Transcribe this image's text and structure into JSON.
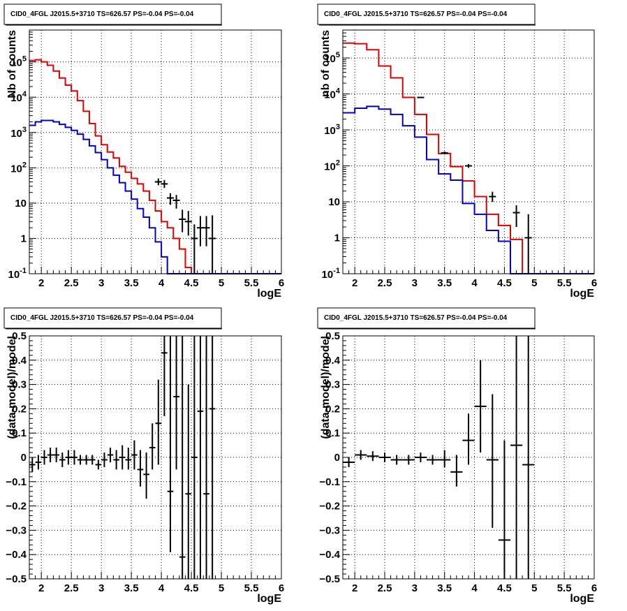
{
  "chart_data": [
    {
      "type": "line",
      "title": "CID0_4FGL J2015.5+3710 TS=626.57 PS=-0.04 PS=-0.04",
      "xlabel": "logE",
      "ylabel": "Nb of counts",
      "xlim": [
        1.8,
        6.0
      ],
      "ylim": [
        0.1,
        800000
      ],
      "yscale": "log",
      "grid": true,
      "x_ticks": [
        2,
        2.5,
        3,
        3.5,
        4,
        4.5,
        5,
        5.5,
        6
      ],
      "x_tick_labels": [
        "2",
        "2.5",
        "3",
        "3.5",
        "4",
        "4.5",
        "5",
        "5.5",
        "6"
      ],
      "y_ticks": [
        0.1,
        1,
        10,
        100,
        1000,
        10000,
        100000
      ],
      "y_tick_labels": [
        "10^-1",
        "1",
        "10",
        "10^2",
        "10^3",
        "10^4",
        "10^5"
      ],
      "bin_edges": [
        1.8,
        1.9,
        2.0,
        2.1,
        2.2,
        2.3,
        2.4,
        2.5,
        2.6,
        2.7,
        2.8,
        2.9,
        3.0,
        3.1,
        3.2,
        3.3,
        3.4,
        3.5,
        3.6,
        3.7,
        3.8,
        3.9,
        4.0,
        4.1,
        4.2,
        4.3,
        4.4,
        4.5,
        4.6,
        4.7,
        4.8,
        4.9,
        5.0,
        5.1,
        5.2,
        5.3,
        5.4,
        5.5,
        5.6,
        5.7,
        5.8,
        5.9,
        6.0
      ],
      "series": [
        {
          "color": "#dd0000",
          "style": "hist",
          "values": [
            110000,
            115000,
            100000,
            80000,
            55000,
            35000,
            22000,
            15000,
            8000,
            4000,
            1800,
            800,
            450,
            280,
            190,
            110,
            75,
            50,
            35,
            22,
            12,
            6,
            3,
            2,
            1,
            0.5,
            0.15,
            0.1,
            0.1,
            0.1,
            0.1,
            0.1,
            0.1,
            0.1,
            0.1,
            0.1,
            0.1,
            0.1,
            0.1,
            0.1,
            0.1,
            0.1
          ]
        },
        {
          "color": "#0000cc",
          "style": "hist",
          "values": [
            1600,
            2000,
            2200,
            2200,
            2000,
            1700,
            1400,
            1150,
            900,
            640,
            420,
            270,
            170,
            100,
            62,
            38,
            22,
            13,
            7,
            4,
            2,
            0.8,
            0.3,
            0.1,
            0.1,
            0.1,
            0.1,
            0.1,
            0.1,
            0.1,
            0.1,
            0.1,
            0.1,
            0.1,
            0.1,
            0.1,
            0.1,
            0.1,
            0.1,
            0.1,
            0.1,
            0.1
          ]
        },
        {
          "color": "#000000",
          "style": "points",
          "points": [
            {
              "x": 3.95,
              "y": 40,
              "lo": 32,
              "hi": 50
            },
            {
              "x": 4.05,
              "y": 35,
              "lo": 27,
              "hi": 45
            },
            {
              "x": 4.15,
              "y": 14,
              "lo": 9,
              "hi": 19
            },
            {
              "x": 4.25,
              "y": 12,
              "lo": 7,
              "hi": 17
            },
            {
              "x": 4.35,
              "y": 3.5,
              "lo": 1.5,
              "hi": 6.5
            },
            {
              "x": 4.45,
              "y": 3,
              "lo": 1.2,
              "hi": 6
            },
            {
              "x": 4.55,
              "y": 1,
              "lo": 0.1,
              "hi": 2.5
            },
            {
              "x": 4.65,
              "y": 2,
              "lo": 0.6,
              "hi": 4.3
            },
            {
              "x": 4.75,
              "y": 2,
              "lo": 0.6,
              "hi": 4.3
            },
            {
              "x": 4.85,
              "y": 1,
              "lo": 0.1,
              "hi": 4.5
            }
          ]
        }
      ]
    },
    {
      "type": "line",
      "title": "CID0_4FGL J2015.5+3710 TS=626.57 PS=-0.04 PS=-0.04",
      "xlabel": "logE",
      "ylabel": "nb of counts",
      "xlim": [
        1.8,
        6.0
      ],
      "ylim": [
        0.1,
        600000
      ],
      "yscale": "log",
      "grid": true,
      "x_ticks": [
        2,
        2.5,
        3,
        3.5,
        4,
        4.5,
        5,
        5.5,
        6
      ],
      "x_tick_labels": [
        "2",
        "2.5",
        "3",
        "3.5",
        "4",
        "4.5",
        "5",
        "5.5",
        "6"
      ],
      "y_ticks": [
        0.1,
        1,
        10,
        100,
        1000,
        10000,
        100000
      ],
      "y_tick_labels": [
        "10^-1",
        "1",
        "10",
        "10^2",
        "10^3",
        "10^4",
        "10^5"
      ],
      "bin_edges": [
        1.8,
        2.0,
        2.2,
        2.4,
        2.6,
        2.8,
        3.0,
        3.2,
        3.4,
        3.6,
        3.8,
        4.0,
        4.2,
        4.4,
        4.6,
        4.8,
        5.0,
        5.2,
        5.4,
        5.6,
        5.8,
        6.0
      ],
      "series": [
        {
          "color": "#dd0000",
          "style": "hist",
          "values": [
            260000,
            250000,
            170000,
            60000,
            28000,
            8000,
            2700,
            750,
            220,
            95,
            38,
            14,
            4.5,
            2.2,
            0.9,
            0.1,
            0.1,
            0.1,
            0.1,
            0.1,
            0.1
          ]
        },
        {
          "color": "#0000cc",
          "style": "hist",
          "values": [
            3000,
            4000,
            4500,
            3800,
            2700,
            1300,
            630,
            150,
            60,
            40,
            9,
            4.5,
            1.6,
            0.8,
            0.1,
            0.1,
            0.1,
            0.1,
            0.1,
            0.1,
            0.1
          ]
        },
        {
          "color": "#000000",
          "style": "points",
          "points": [
            {
              "x": 3.1,
              "y": 8000,
              "lo": 7800,
              "hi": 8200
            },
            {
              "x": 3.5,
              "y": 230,
              "lo": 210,
              "hi": 250
            },
            {
              "x": 3.9,
              "y": 100,
              "lo": 88,
              "hi": 112
            },
            {
              "x": 4.3,
              "y": 14,
              "lo": 10,
              "hi": 19
            },
            {
              "x": 4.7,
              "y": 5,
              "lo": 2,
              "hi": 8
            },
            {
              "x": 4.9,
              "y": 1,
              "lo": 0.1,
              "hi": 4.5
            }
          ]
        }
      ]
    },
    {
      "type": "scatter",
      "title": "CID0_4FGL J2015.5+3710 TS=626.57 PS=-0.04 PS=-0.04",
      "xlabel": "logE",
      "ylabel": "(data-model)/model",
      "xlim": [
        1.8,
        6.0
      ],
      "ylim": [
        -0.5,
        0.5
      ],
      "yscale": "linear",
      "grid": true,
      "x_ticks": [
        2,
        2.5,
        3,
        3.5,
        4,
        4.5,
        5,
        5.5,
        6
      ],
      "x_tick_labels": [
        "2",
        "2.5",
        "3",
        "3.5",
        "4",
        "4.5",
        "5",
        "5.5",
        "6"
      ],
      "y_ticks": [
        -0.5,
        -0.4,
        -0.3,
        -0.2,
        -0.1,
        0,
        0.1,
        0.2,
        0.3,
        0.4,
        0.5
      ],
      "y_tick_labels": [
        "−0.5",
        "−0.4",
        "−0.3",
        "−0.2",
        "−0.1",
        "0",
        "0.1",
        "0.2",
        "0.3",
        "0.4",
        "0.5"
      ],
      "xerr": 0.05,
      "points": [
        {
          "x": 1.85,
          "y": -0.03,
          "lo": -0.06,
          "hi": 0.0
        },
        {
          "x": 1.95,
          "y": -0.02,
          "lo": -0.05,
          "hi": 0.01
        },
        {
          "x": 2.05,
          "y": 0.0,
          "lo": -0.03,
          "hi": 0.03
        },
        {
          "x": 2.15,
          "y": 0.01,
          "lo": -0.02,
          "hi": 0.04
        },
        {
          "x": 2.25,
          "y": 0.01,
          "lo": -0.02,
          "hi": 0.04
        },
        {
          "x": 2.35,
          "y": -0.01,
          "lo": -0.04,
          "hi": 0.02
        },
        {
          "x": 2.45,
          "y": 0.0,
          "lo": -0.03,
          "hi": 0.03
        },
        {
          "x": 2.55,
          "y": 0.0,
          "lo": -0.03,
          "hi": 0.03
        },
        {
          "x": 2.65,
          "y": -0.01,
          "lo": -0.03,
          "hi": 0.01
        },
        {
          "x": 2.75,
          "y": -0.01,
          "lo": -0.03,
          "hi": 0.01
        },
        {
          "x": 2.85,
          "y": -0.01,
          "lo": -0.03,
          "hi": 0.01
        },
        {
          "x": 2.95,
          "y": -0.03,
          "lo": -0.05,
          "hi": -0.01
        },
        {
          "x": 3.05,
          "y": -0.01,
          "lo": -0.04,
          "hi": 0.02
        },
        {
          "x": 3.15,
          "y": 0.01,
          "lo": -0.02,
          "hi": 0.04
        },
        {
          "x": 3.25,
          "y": -0.01,
          "lo": -0.05,
          "hi": 0.03
        },
        {
          "x": 3.35,
          "y": 0.0,
          "lo": -0.05,
          "hi": 0.05
        },
        {
          "x": 3.45,
          "y": -0.01,
          "lo": -0.05,
          "hi": 0.04
        },
        {
          "x": 3.55,
          "y": 0.01,
          "lo": -0.05,
          "hi": 0.07
        },
        {
          "x": 3.65,
          "y": -0.05,
          "lo": -0.12,
          "hi": 0.03
        },
        {
          "x": 3.75,
          "y": -0.07,
          "lo": -0.17,
          "hi": 0.02
        },
        {
          "x": 3.85,
          "y": 0.04,
          "lo": -0.05,
          "hi": 0.14
        },
        {
          "x": 3.95,
          "y": 0.14,
          "lo": -0.03,
          "hi": 0.32
        },
        {
          "x": 4.05,
          "y": 0.43,
          "lo": 0.17,
          "hi": 0.5
        },
        {
          "x": 4.15,
          "y": -0.14,
          "lo": -0.39,
          "hi": 0.5
        },
        {
          "x": 4.25,
          "y": 0.25,
          "lo": -0.05,
          "hi": 0.5
        },
        {
          "x": 4.35,
          "y": -0.41,
          "lo": -0.5,
          "hi": 0.5
        },
        {
          "x": 4.45,
          "y": -0.15,
          "lo": -0.5,
          "hi": 0.3
        },
        {
          "x": 4.55,
          "y": 0.0,
          "lo": -0.5,
          "hi": 0.5
        },
        {
          "x": 4.65,
          "y": 0.19,
          "lo": -0.5,
          "hi": 0.5
        },
        {
          "x": 4.75,
          "y": -0.15,
          "lo": -0.5,
          "hi": 0.5
        },
        {
          "x": 4.85,
          "y": 0.2,
          "lo": -0.5,
          "hi": 0.5
        }
      ]
    },
    {
      "type": "scatter",
      "title": "CID0_4FGL J2015.5+3710 TS=626.57 PS=-0.04 PS=-0.04",
      "xlabel": "logE",
      "ylabel": "(data-model)/model",
      "xlim": [
        1.8,
        6.0
      ],
      "ylim": [
        -0.5,
        0.5
      ],
      "yscale": "linear",
      "grid": true,
      "x_ticks": [
        2,
        2.5,
        3,
        3.5,
        4,
        4.5,
        5,
        5.5,
        6
      ],
      "x_tick_labels": [
        "2",
        "2.5",
        "3",
        "3.5",
        "4",
        "4.5",
        "5",
        "5.5",
        "6"
      ],
      "y_ticks": [
        -0.5,
        -0.4,
        -0.3,
        -0.2,
        -0.1,
        0,
        0.1,
        0.2,
        0.3,
        0.4,
        0.5
      ],
      "y_tick_labels": [
        "−0.5",
        "−0.4",
        "−0.3",
        "−0.2",
        "−0.1",
        "0",
        "0.1",
        "0.2",
        "0.3",
        "0.4",
        "0.5"
      ],
      "xerr": 0.1,
      "points": [
        {
          "x": 1.9,
          "y": -0.02,
          "lo": -0.04,
          "hi": 0.0
        },
        {
          "x": 2.1,
          "y": 0.01,
          "lo": -0.01,
          "hi": 0.03
        },
        {
          "x": 2.3,
          "y": 0.005,
          "lo": -0.015,
          "hi": 0.025
        },
        {
          "x": 2.5,
          "y": 0.0,
          "lo": -0.02,
          "hi": 0.02
        },
        {
          "x": 2.7,
          "y": -0.01,
          "lo": -0.03,
          "hi": 0.01
        },
        {
          "x": 2.9,
          "y": -0.01,
          "lo": -0.03,
          "hi": 0.01
        },
        {
          "x": 3.1,
          "y": 0.0,
          "lo": -0.02,
          "hi": 0.02
        },
        {
          "x": 3.3,
          "y": -0.01,
          "lo": -0.03,
          "hi": 0.01
        },
        {
          "x": 3.5,
          "y": -0.01,
          "lo": -0.04,
          "hi": 0.03
        },
        {
          "x": 3.7,
          "y": -0.06,
          "lo": -0.12,
          "hi": 0.01
        },
        {
          "x": 3.9,
          "y": 0.07,
          "lo": -0.03,
          "hi": 0.18
        },
        {
          "x": 4.1,
          "y": 0.21,
          "lo": 0.02,
          "hi": 0.4
        },
        {
          "x": 4.3,
          "y": -0.01,
          "lo": -0.29,
          "hi": 0.26
        },
        {
          "x": 4.5,
          "y": -0.34,
          "lo": -0.5,
          "hi": 0.07
        },
        {
          "x": 4.7,
          "y": 0.05,
          "lo": -0.5,
          "hi": 0.5
        },
        {
          "x": 4.9,
          "y": -0.03,
          "lo": -0.5,
          "hi": 0.5
        }
      ]
    }
  ]
}
